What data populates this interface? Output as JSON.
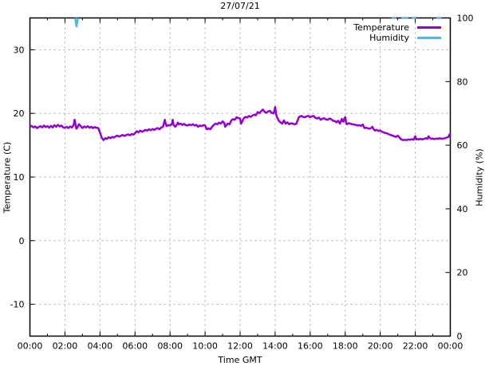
{
  "chart_data": {
    "type": "line",
    "title": "27/07/21",
    "xlabel": "Time GMT",
    "ylabel": "Temperature (C)",
    "y2label": "Humidity (%)",
    "x_range_hours": [
      0,
      24
    ],
    "x_major_ticks": [
      {
        "h": 0,
        "label": "00:00"
      },
      {
        "h": 2,
        "label": "02:00"
      },
      {
        "h": 4,
        "label": "04:00"
      },
      {
        "h": 6,
        "label": "06:00"
      },
      {
        "h": 8,
        "label": "08:00"
      },
      {
        "h": 10,
        "label": "10:00"
      },
      {
        "h": 12,
        "label": "12:00"
      },
      {
        "h": 14,
        "label": "14:00"
      },
      {
        "h": 16,
        "label": "16:00"
      },
      {
        "h": 18,
        "label": "18:00"
      },
      {
        "h": 20,
        "label": "20:00"
      },
      {
        "h": 22,
        "label": "22:00"
      },
      {
        "h": 24,
        "label": "00:00"
      }
    ],
    "x_minor_every_hours": 1,
    "y_range": [
      -15,
      35
    ],
    "y_ticks": [
      {
        "v": -10,
        "label": "-10"
      },
      {
        "v": 0,
        "label": "0"
      },
      {
        "v": 10,
        "label": "10"
      },
      {
        "v": 20,
        "label": "20"
      },
      {
        "v": 30,
        "label": "30"
      }
    ],
    "y2_range": [
      0,
      100
    ],
    "y2_ticks": [
      {
        "v": 0,
        "label": "0"
      },
      {
        "v": 20,
        "label": "20"
      },
      {
        "v": 40,
        "label": "40"
      },
      {
        "v": 60,
        "label": "60"
      },
      {
        "v": 80,
        "label": "80"
      },
      {
        "v": 100,
        "label": "100"
      }
    ],
    "grid": true,
    "grid_color": "#a8a8a8",
    "border_color": "#000000",
    "legend": {
      "position": "top-right",
      "entries": [
        {
          "label": "Temperature",
          "color": "#9400d3"
        },
        {
          "label": "Humidity",
          "color": "#55b4e8"
        }
      ]
    },
    "series": [
      {
        "name": "Temperature",
        "axis": "y1",
        "color": "#9400d3",
        "points": [
          [
            0.0,
            17.9
          ],
          [
            0.1,
            18.05
          ],
          [
            0.2,
            17.8
          ],
          [
            0.3,
            17.95
          ],
          [
            0.4,
            17.7
          ],
          [
            0.5,
            17.85
          ],
          [
            0.6,
            18.0
          ],
          [
            0.7,
            17.8
          ],
          [
            0.8,
            18.1
          ],
          [
            0.9,
            17.85
          ],
          [
            1.0,
            18.0
          ],
          [
            1.1,
            17.75
          ],
          [
            1.2,
            18.05
          ],
          [
            1.3,
            17.8
          ],
          [
            1.4,
            18.15
          ],
          [
            1.5,
            17.9
          ],
          [
            1.6,
            18.2
          ],
          [
            1.7,
            17.95
          ],
          [
            1.8,
            18.1
          ],
          [
            1.9,
            17.8
          ],
          [
            2.0,
            17.75
          ],
          [
            2.1,
            17.9
          ],
          [
            2.2,
            17.7
          ],
          [
            2.3,
            17.95
          ],
          [
            2.4,
            17.8
          ],
          [
            2.5,
            18.2
          ],
          [
            2.55,
            19.0
          ],
          [
            2.6,
            18.3
          ],
          [
            2.65,
            17.6
          ],
          [
            2.7,
            17.75
          ],
          [
            2.8,
            18.3
          ],
          [
            2.9,
            18.0
          ],
          [
            3.0,
            17.7
          ],
          [
            3.1,
            17.95
          ],
          [
            3.2,
            17.8
          ],
          [
            3.3,
            18.0
          ],
          [
            3.4,
            17.75
          ],
          [
            3.5,
            17.9
          ],
          [
            3.6,
            17.7
          ],
          [
            3.7,
            17.85
          ],
          [
            3.8,
            17.75
          ],
          [
            3.9,
            17.7
          ],
          [
            4.0,
            17.0
          ],
          [
            4.1,
            16.2
          ],
          [
            4.2,
            15.8
          ],
          [
            4.3,
            16.1
          ],
          [
            4.4,
            16.0
          ],
          [
            4.5,
            16.25
          ],
          [
            4.6,
            16.1
          ],
          [
            4.7,
            16.3
          ],
          [
            4.8,
            16.2
          ],
          [
            4.9,
            16.4
          ],
          [
            5.0,
            16.5
          ],
          [
            5.1,
            16.35
          ],
          [
            5.2,
            16.5
          ],
          [
            5.3,
            16.6
          ],
          [
            5.4,
            16.45
          ],
          [
            5.5,
            16.6
          ],
          [
            5.6,
            16.7
          ],
          [
            5.7,
            16.55
          ],
          [
            5.8,
            16.75
          ],
          [
            5.9,
            16.65
          ],
          [
            6.0,
            16.9
          ],
          [
            6.1,
            17.2
          ],
          [
            6.2,
            17.0
          ],
          [
            6.3,
            17.3
          ],
          [
            6.4,
            17.1
          ],
          [
            6.5,
            17.25
          ],
          [
            6.6,
            17.4
          ],
          [
            6.7,
            17.3
          ],
          [
            6.8,
            17.5
          ],
          [
            6.9,
            17.35
          ],
          [
            7.0,
            17.55
          ],
          [
            7.1,
            17.4
          ],
          [
            7.2,
            17.6
          ],
          [
            7.3,
            17.7
          ],
          [
            7.4,
            17.5
          ],
          [
            7.5,
            17.8
          ],
          [
            7.6,
            17.9
          ],
          [
            7.7,
            19.0
          ],
          [
            7.75,
            18.4
          ],
          [
            7.8,
            18.0
          ],
          [
            7.9,
            18.15
          ],
          [
            8.0,
            18.1
          ],
          [
            8.1,
            18.3
          ],
          [
            8.15,
            19.0
          ],
          [
            8.2,
            18.2
          ],
          [
            8.3,
            17.9
          ],
          [
            8.4,
            18.3
          ],
          [
            8.45,
            18.55
          ],
          [
            8.5,
            18.3
          ],
          [
            8.6,
            18.4
          ],
          [
            8.7,
            18.2
          ],
          [
            8.8,
            18.35
          ],
          [
            8.9,
            18.15
          ],
          [
            9.0,
            18.1
          ],
          [
            9.1,
            18.25
          ],
          [
            9.2,
            18.15
          ],
          [
            9.3,
            18.3
          ],
          [
            9.4,
            18.1
          ],
          [
            9.5,
            18.2
          ],
          [
            9.6,
            17.9
          ],
          [
            9.7,
            18.1
          ],
          [
            9.8,
            18.0
          ],
          [
            9.9,
            18.15
          ],
          [
            10.0,
            18.1
          ],
          [
            10.1,
            17.5
          ],
          [
            10.2,
            17.65
          ],
          [
            10.3,
            17.5
          ],
          [
            10.4,
            17.9
          ],
          [
            10.5,
            18.2
          ],
          [
            10.6,
            18.4
          ],
          [
            10.7,
            18.3
          ],
          [
            10.8,
            18.55
          ],
          [
            10.9,
            18.4
          ],
          [
            11.0,
            18.75
          ],
          [
            11.1,
            18.5
          ],
          [
            11.15,
            17.9
          ],
          [
            11.2,
            18.1
          ],
          [
            11.3,
            18.4
          ],
          [
            11.4,
            18.3
          ],
          [
            11.5,
            18.9
          ],
          [
            11.6,
            19.1
          ],
          [
            11.7,
            19.0
          ],
          [
            11.8,
            19.4
          ],
          [
            11.9,
            19.25
          ],
          [
            12.0,
            19.2
          ],
          [
            12.05,
            18.4
          ],
          [
            12.1,
            18.6
          ],
          [
            12.2,
            19.2
          ],
          [
            12.3,
            19.45
          ],
          [
            12.4,
            19.35
          ],
          [
            12.5,
            19.6
          ],
          [
            12.6,
            19.45
          ],
          [
            12.7,
            19.65
          ],
          [
            12.8,
            19.8
          ],
          [
            12.9,
            19.7
          ],
          [
            13.0,
            20.2
          ],
          [
            13.1,
            20.05
          ],
          [
            13.2,
            20.35
          ],
          [
            13.3,
            20.6
          ],
          [
            13.4,
            20.25
          ],
          [
            13.5,
            20.1
          ],
          [
            13.6,
            20.3
          ],
          [
            13.7,
            20.4
          ],
          [
            13.8,
            20.1
          ],
          [
            13.9,
            20.0
          ],
          [
            13.95,
            20.3
          ],
          [
            14.0,
            21.0
          ],
          [
            14.05,
            20.0
          ],
          [
            14.1,
            19.4
          ],
          [
            14.15,
            19.2
          ],
          [
            14.2,
            18.9
          ],
          [
            14.3,
            18.6
          ],
          [
            14.4,
            18.4
          ],
          [
            14.5,
            18.9
          ],
          [
            14.6,
            18.4
          ],
          [
            14.7,
            18.6
          ],
          [
            14.8,
            18.3
          ],
          [
            14.9,
            18.45
          ],
          [
            15.0,
            18.4
          ],
          [
            15.1,
            18.3
          ],
          [
            15.2,
            18.35
          ],
          [
            15.3,
            19.0
          ],
          [
            15.35,
            19.4
          ],
          [
            15.4,
            19.5
          ],
          [
            15.5,
            19.6
          ],
          [
            15.6,
            19.45
          ],
          [
            15.7,
            19.4
          ],
          [
            15.8,
            19.55
          ],
          [
            15.9,
            19.6
          ],
          [
            16.0,
            19.4
          ],
          [
            16.1,
            19.55
          ],
          [
            16.2,
            19.6
          ],
          [
            16.3,
            19.3
          ],
          [
            16.4,
            19.2
          ],
          [
            16.5,
            19.35
          ],
          [
            16.6,
            19.0
          ],
          [
            16.7,
            19.15
          ],
          [
            16.8,
            19.25
          ],
          [
            16.9,
            19.05
          ],
          [
            17.0,
            19.0
          ],
          [
            17.1,
            19.2
          ],
          [
            17.2,
            19.1
          ],
          [
            17.3,
            18.85
          ],
          [
            17.4,
            18.8
          ],
          [
            17.5,
            18.6
          ],
          [
            17.6,
            18.85
          ],
          [
            17.7,
            18.4
          ],
          [
            17.8,
            19.15
          ],
          [
            17.85,
            18.8
          ],
          [
            17.9,
            18.7
          ],
          [
            17.95,
            19.2
          ],
          [
            18.0,
            19.4
          ],
          [
            18.05,
            18.6
          ],
          [
            18.1,
            18.3
          ],
          [
            18.2,
            18.45
          ],
          [
            18.3,
            18.4
          ],
          [
            18.4,
            18.3
          ],
          [
            18.5,
            18.25
          ],
          [
            18.6,
            18.2
          ],
          [
            18.7,
            18.1
          ],
          [
            18.8,
            18.15
          ],
          [
            18.9,
            18.05
          ],
          [
            19.0,
            18.25
          ],
          [
            19.1,
            17.7
          ],
          [
            19.2,
            17.75
          ],
          [
            19.3,
            17.65
          ],
          [
            19.4,
            17.6
          ],
          [
            19.5,
            17.75
          ],
          [
            19.55,
            17.9
          ],
          [
            19.6,
            17.6
          ],
          [
            19.7,
            17.3
          ],
          [
            19.8,
            17.4
          ],
          [
            19.9,
            17.25
          ],
          [
            20.0,
            17.3
          ],
          [
            20.1,
            17.1
          ],
          [
            20.2,
            17.0
          ],
          [
            20.3,
            16.9
          ],
          [
            20.4,
            16.85
          ],
          [
            20.5,
            16.7
          ],
          [
            20.6,
            16.6
          ],
          [
            20.7,
            16.5
          ],
          [
            20.8,
            16.4
          ],
          [
            20.9,
            16.3
          ],
          [
            21.0,
            16.5
          ],
          [
            21.1,
            16.2
          ],
          [
            21.2,
            15.9
          ],
          [
            21.3,
            15.8
          ],
          [
            21.4,
            15.85
          ],
          [
            21.5,
            15.8
          ],
          [
            21.6,
            15.9
          ],
          [
            21.7,
            15.85
          ],
          [
            21.8,
            15.95
          ],
          [
            21.9,
            15.85
          ],
          [
            22.0,
            16.4
          ],
          [
            22.05,
            15.9
          ],
          [
            22.1,
            16.0
          ],
          [
            22.2,
            15.9
          ],
          [
            22.3,
            16.0
          ],
          [
            22.4,
            15.9
          ],
          [
            22.5,
            16.0
          ],
          [
            22.6,
            16.1
          ],
          [
            22.7,
            16.0
          ],
          [
            22.75,
            16.4
          ],
          [
            22.8,
            16.2
          ],
          [
            22.9,
            16.0
          ],
          [
            23.0,
            16.05
          ],
          [
            23.1,
            15.95
          ],
          [
            23.2,
            16.05
          ],
          [
            23.3,
            16.0
          ],
          [
            23.4,
            16.1
          ],
          [
            23.5,
            16.0
          ],
          [
            23.6,
            16.05
          ],
          [
            23.7,
            16.1
          ],
          [
            23.8,
            16.2
          ],
          [
            23.9,
            16.3
          ],
          [
            23.95,
            16.7
          ],
          [
            24.0,
            16.5
          ]
        ]
      },
      {
        "name": "Humidity",
        "axis": "y2",
        "color": "#55b4e8",
        "note": "At 100% most of the day (clipped at top border); only these segments are visibly drawn",
        "points": [
          [
            2.58,
            100
          ],
          [
            2.66,
            97.3
          ],
          [
            2.74,
            100
          ],
          null,
          [
            20.65,
            100
          ],
          [
            20.9,
            100
          ],
          null,
          [
            21.2,
            100
          ],
          [
            21.6,
            100
          ],
          null,
          [
            21.8,
            100
          ],
          [
            22.05,
            100
          ],
          null,
          [
            23.2,
            100
          ],
          [
            23.5,
            100
          ]
        ]
      }
    ]
  }
}
